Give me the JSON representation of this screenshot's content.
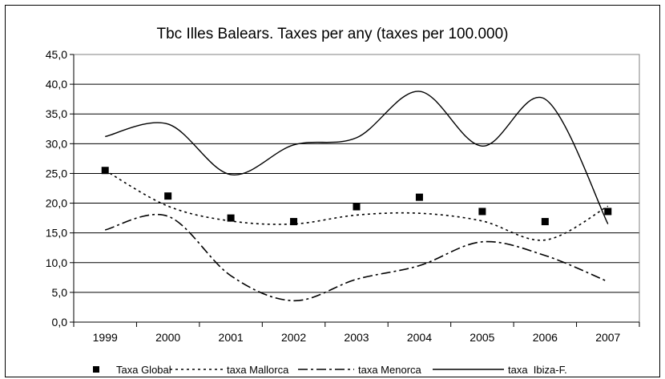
{
  "chart_data": {
    "type": "line",
    "title": "Tbc Illes Balears. Taxes per any (taxes per 100.000)",
    "xlabel": "",
    "ylabel": "",
    "categories": [
      "1999",
      "2000",
      "2001",
      "2002",
      "2003",
      "2004",
      "2005",
      "2006",
      "2007"
    ],
    "ylim": [
      0,
      45
    ],
    "yticks": [
      "0,0",
      "5,0",
      "10,0",
      "15,0",
      "20,0",
      "25,0",
      "30,0",
      "35,0",
      "40,0",
      "45,0"
    ],
    "grid": true,
    "legend_position": "bottom",
    "series": [
      {
        "name": "Taxa Global",
        "style": "markers",
        "color": "#000000",
        "values": [
          25.5,
          21.2,
          17.5,
          16.9,
          19.4,
          21.0,
          18.6,
          16.9,
          18.6
        ]
      },
      {
        "name": "taxa Mallorca",
        "style": "dotted",
        "color": "#000000",
        "values": [
          25.5,
          19.5,
          17.0,
          16.5,
          18.0,
          18.3,
          17.0,
          13.8,
          19.5
        ]
      },
      {
        "name": "taxa Menorca",
        "style": "dash-dot",
        "color": "#000000",
        "values": [
          15.5,
          17.8,
          7.8,
          3.6,
          7.2,
          9.5,
          13.5,
          11.2,
          6.8
        ]
      },
      {
        "name": "taxa  Ibiza-F.",
        "style": "solid",
        "color": "#000000",
        "values": [
          31.2,
          33.3,
          24.8,
          29.8,
          31.0,
          38.8,
          29.6,
          37.5,
          16.5
        ]
      }
    ]
  }
}
